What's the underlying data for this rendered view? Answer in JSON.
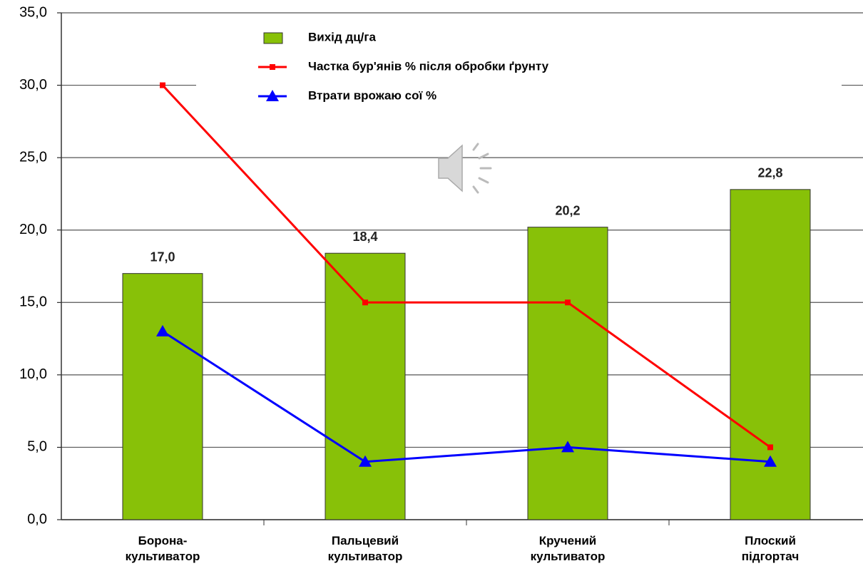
{
  "chart_data": {
    "type": "combo",
    "categories": [
      "Борона-\nкультиватор",
      "Пальцевий\nкультиватор",
      "Кручений\nкультиватор",
      "Плоский\nпідгортач"
    ],
    "series": [
      {
        "name": "Вихід дц/га",
        "type": "bar",
        "color": "#88c108",
        "values": [
          17.0,
          18.4,
          20.2,
          22.8
        ],
        "value_labels": [
          "17,0",
          "18,4",
          "20,2",
          "22,8"
        ]
      },
      {
        "name": "Частка бур'янів % після обробки ґрунту",
        "type": "line",
        "marker": "square",
        "color": "#ff0000",
        "values": [
          30,
          15,
          15,
          5
        ]
      },
      {
        "name": "Втрати врожаю сої %",
        "type": "line",
        "marker": "triangle",
        "color": "#0000ff",
        "values": [
          13,
          4,
          5,
          4
        ]
      }
    ],
    "ylim": [
      0,
      35
    ],
    "yticks": [
      {
        "value": 0,
        "label": "0,0"
      },
      {
        "value": 5,
        "label": "5,0"
      },
      {
        "value": 10,
        "label": "10,0"
      },
      {
        "value": 15,
        "label": "15,0"
      },
      {
        "value": 20,
        "label": "20,0"
      },
      {
        "value": 25,
        "label": "25,0"
      },
      {
        "value": 30,
        "label": "30,0"
      },
      {
        "value": 35,
        "label": "35,0"
      }
    ],
    "grid": true
  }
}
